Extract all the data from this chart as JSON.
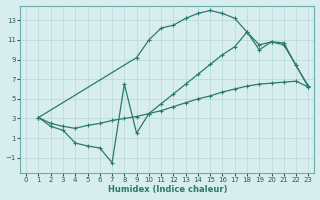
{
  "bg_color": "#d8eeee",
  "grid_color": "#b8d8d8",
  "line_color": "#2a7a6a",
  "xlabel": "Humidex (Indice chaleur)",
  "xlim": [
    -0.5,
    23.5
  ],
  "ylim": [
    -2.5,
    14.5
  ],
  "xticks": [
    0,
    1,
    2,
    3,
    4,
    5,
    6,
    7,
    8,
    9,
    10,
    11,
    12,
    13,
    14,
    15,
    16,
    17,
    18,
    19,
    20,
    21,
    22,
    23
  ],
  "yticks": [
    -1,
    1,
    3,
    5,
    7,
    9,
    11,
    13
  ],
  "curve_upper_x": [
    1,
    9,
    10,
    11,
    12,
    13,
    14,
    15,
    16,
    17,
    18,
    19,
    20,
    21,
    22,
    23
  ],
  "curve_upper_y": [
    3.1,
    9.2,
    11.0,
    12.2,
    12.5,
    13.2,
    13.7,
    14.0,
    13.7,
    13.2,
    11.8,
    10.5,
    10.8,
    10.7,
    8.4,
    6.3
  ],
  "curve_mid_x": [
    1,
    2,
    3,
    4,
    5,
    6,
    7,
    8,
    9,
    10,
    11,
    12,
    13,
    14,
    15,
    16,
    17,
    18,
    19,
    20,
    21,
    22,
    23
  ],
  "curve_mid_y": [
    3.1,
    2.5,
    2.2,
    2.0,
    2.3,
    2.5,
    2.8,
    3.0,
    3.2,
    3.5,
    3.8,
    4.2,
    4.6,
    5.0,
    5.3,
    5.7,
    6.0,
    6.3,
    6.5,
    6.6,
    6.7,
    6.8,
    6.2
  ],
  "curve_low_x": [
    1,
    2,
    3,
    4,
    5,
    6,
    7,
    8,
    9,
    10,
    11,
    12,
    13,
    14,
    15,
    16,
    17,
    18,
    19,
    20,
    21,
    22,
    23
  ],
  "curve_low_y": [
    3.1,
    2.2,
    1.8,
    0.5,
    0.2,
    0.0,
    -1.5,
    6.5,
    1.5,
    3.5,
    4.5,
    5.5,
    6.5,
    7.5,
    8.5,
    9.5,
    10.3,
    11.8,
    10.0,
    10.8,
    10.5,
    8.4,
    6.2
  ]
}
